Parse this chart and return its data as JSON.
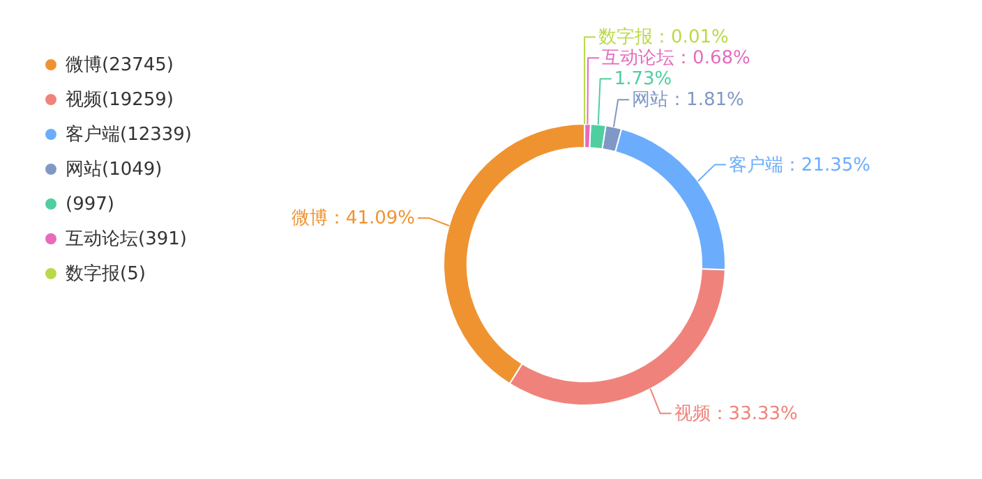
{
  "chart_data": {
    "type": "donut",
    "categories": [
      "微博(23745)",
      "视频(19259)",
      "客户端(12339)",
      "网站(1049)",
      "(997)",
      "互动论坛(391)",
      "数字报(5)"
    ],
    "values": [
      41.09,
      33.33,
      21.35,
      1.81,
      1.73,
      0.68,
      0.01
    ],
    "value_labels": [
      "微博：41.09%",
      "视频：33.33%",
      "客户端：21.35%",
      "网站：1.81%",
      "1.73%",
      "互动论坛：0.68%",
      "数字报：0.01%"
    ],
    "colors": [
      "#ef9331",
      "#ef837c",
      "#6badfc",
      "#7f98c6",
      "#4fcf9f",
      "#e66bbd",
      "#b9d94a"
    ],
    "legend": "top left"
  }
}
